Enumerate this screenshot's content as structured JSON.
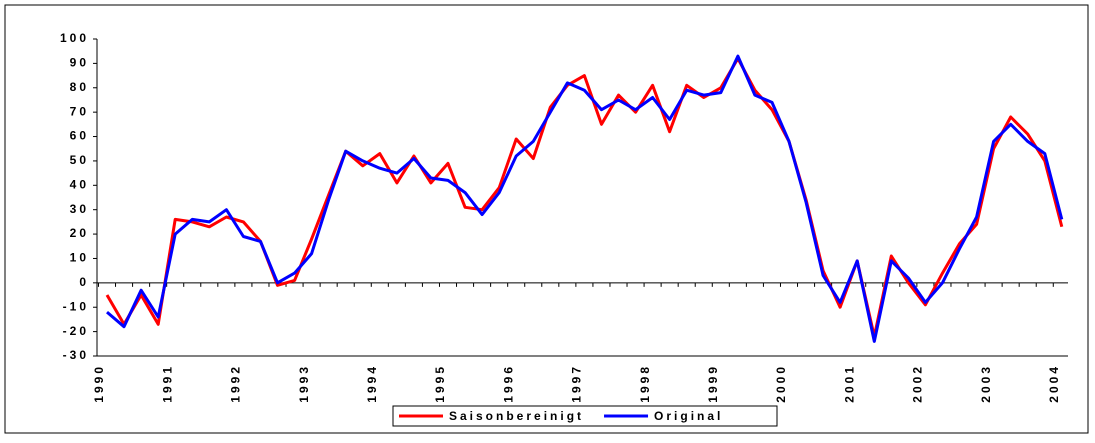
{
  "chart_data": {
    "type": "line",
    "categories": [
      "1990",
      null,
      null,
      null,
      "1991",
      null,
      null,
      null,
      "1992",
      null,
      null,
      null,
      "1993",
      null,
      null,
      null,
      "1994",
      null,
      null,
      null,
      "1995",
      null,
      null,
      null,
      "1996",
      null,
      null,
      null,
      "1997",
      null,
      null,
      null,
      "1998",
      null,
      null,
      null,
      "1999",
      null,
      null,
      null,
      "2000",
      null,
      null,
      null,
      "2001",
      null,
      null,
      null,
      "2002",
      null,
      null,
      null,
      "2003",
      null,
      null,
      null,
      "2004"
    ],
    "series": [
      {
        "name": "Saisonbereinigt",
        "color": "#ff0000",
        "values": [
          -5,
          -17,
          -5,
          -17,
          26,
          25,
          23,
          27,
          25,
          17,
          -1,
          1,
          18,
          36,
          54,
          48,
          53,
          41,
          52,
          41,
          49,
          31,
          30,
          39,
          59,
          51,
          72,
          81,
          85,
          65,
          77,
          70,
          81,
          62,
          81,
          76,
          80,
          92,
          79,
          71,
          58,
          34,
          5,
          -10,
          9,
          -22,
          11,
          0,
          -9,
          4,
          16,
          24,
          55,
          68,
          61,
          50,
          23
        ]
      },
      {
        "name": "Original",
        "color": "#0000ff",
        "values": [
          -12,
          -18,
          -3,
          -14,
          20,
          26,
          25,
          30,
          19,
          17,
          0,
          4,
          12,
          34,
          54,
          50,
          47,
          45,
          51,
          43,
          42,
          37,
          28,
          37,
          52,
          58,
          70,
          82,
          79,
          71,
          75,
          71,
          76,
          67,
          79,
          77,
          78,
          93,
          77,
          74,
          58,
          33,
          3,
          -8,
          9,
          -24,
          9,
          2,
          -8,
          0,
          14,
          27,
          58,
          65,
          58,
          53,
          26
        ]
      }
    ],
    "ylim": [
      -30,
      100
    ],
    "yticks": [
      -30,
      -20,
      -10,
      0,
      10,
      20,
      30,
      40,
      50,
      60,
      70,
      80,
      90,
      100
    ],
    "legend": "bottom"
  }
}
